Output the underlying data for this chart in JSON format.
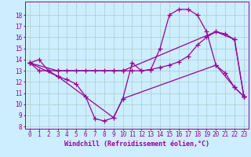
{
  "background_color": "#cceeff",
  "grid_color": "#aacccc",
  "line_color": "#990099",
  "marker": "+",
  "markersize": 4,
  "linewidth": 0.9,
  "xlabel": "Windchill (Refroidissement éolien,°C)",
  "xlabel_fontsize": 6,
  "tick_fontsize": 5.5,
  "xlim": [
    -0.5,
    23.5
  ],
  "ylim": [
    7.8,
    19.2
  ],
  "yticks": [
    8,
    9,
    10,
    11,
    12,
    13,
    14,
    15,
    16,
    17,
    18
  ],
  "xticks": [
    0,
    1,
    2,
    3,
    4,
    5,
    6,
    7,
    8,
    9,
    10,
    11,
    12,
    13,
    14,
    15,
    16,
    17,
    18,
    19,
    20,
    21,
    22,
    23
  ],
  "lines": [
    {
      "x": [
        0,
        1,
        2,
        3,
        4,
        5,
        6,
        7,
        8,
        9,
        10,
        11,
        12,
        13,
        14,
        15,
        16,
        17,
        18,
        19,
        20,
        21,
        22,
        23
      ],
      "y": [
        13.7,
        14.0,
        13.0,
        12.5,
        12.2,
        11.8,
        10.7,
        8.7,
        8.5,
        8.8,
        10.5,
        13.7,
        13.0,
        13.1,
        15.0,
        18.0,
        18.5,
        18.5,
        18.0,
        16.5,
        13.5,
        12.8,
        11.5,
        10.7
      ]
    },
    {
      "x": [
        0,
        1,
        2,
        3,
        4,
        5,
        6,
        7,
        8,
        9,
        10,
        11,
        12,
        13,
        14,
        15,
        16,
        17,
        18,
        19,
        20,
        21,
        22,
        23
      ],
      "y": [
        13.7,
        13.0,
        13.0,
        13.0,
        13.0,
        13.0,
        13.0,
        13.0,
        13.0,
        13.0,
        13.0,
        13.0,
        13.0,
        13.1,
        13.3,
        13.5,
        13.8,
        14.3,
        15.3,
        16.0,
        16.5,
        16.3,
        15.8,
        10.7
      ]
    },
    {
      "x": [
        0,
        3,
        9,
        10,
        20,
        22,
        23
      ],
      "y": [
        13.7,
        12.5,
        8.8,
        10.5,
        13.5,
        11.5,
        10.7
      ]
    },
    {
      "x": [
        0,
        3,
        9,
        10,
        20,
        22,
        23
      ],
      "y": [
        13.7,
        13.0,
        13.0,
        13.0,
        16.5,
        15.8,
        10.7
      ]
    }
  ]
}
